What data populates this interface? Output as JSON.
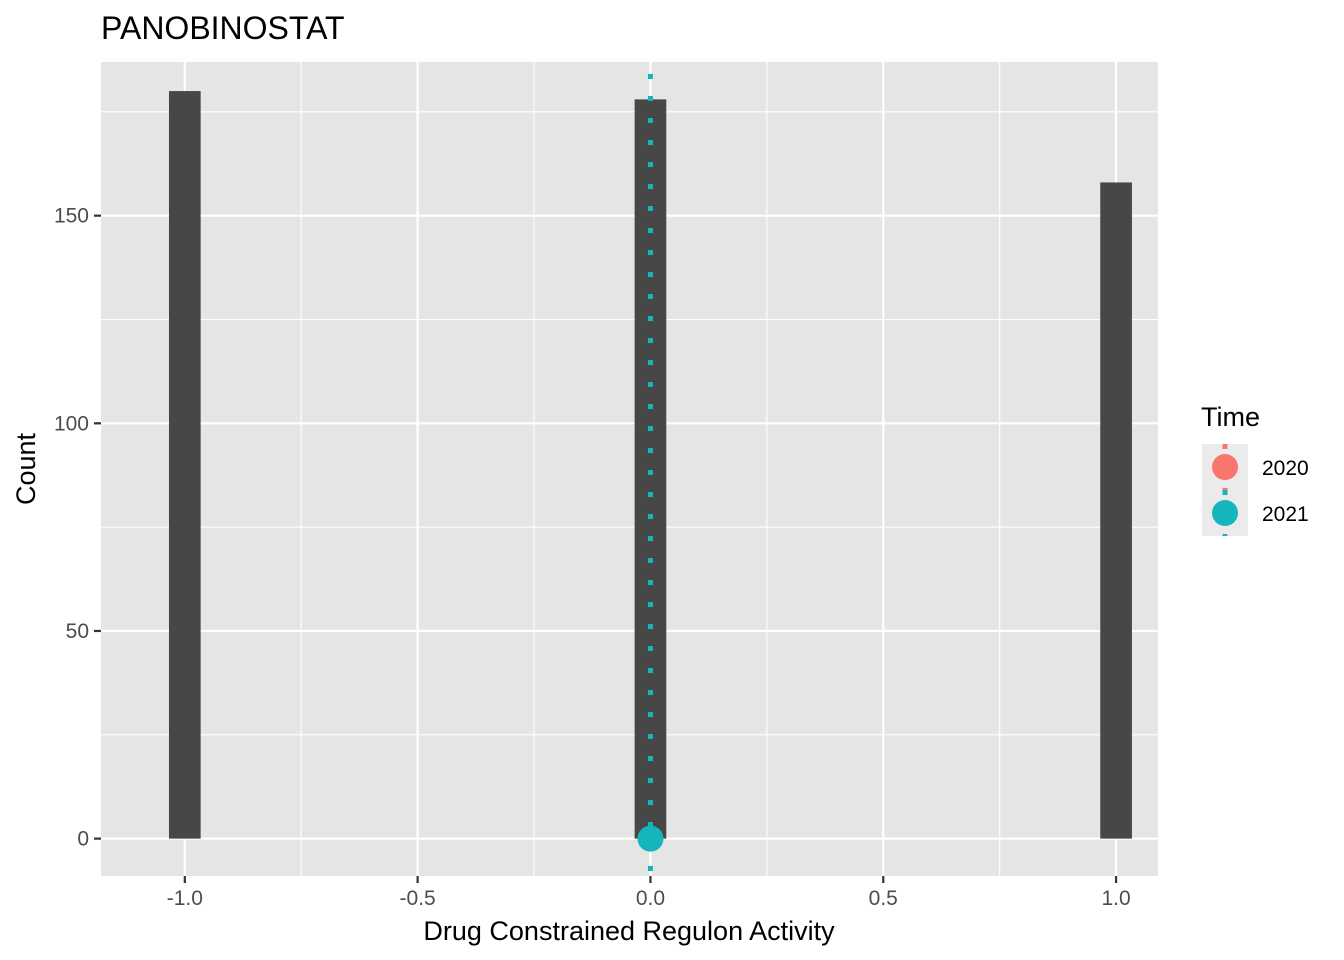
{
  "chart_data": {
    "type": "bar",
    "title": "PANOBINOSTAT",
    "xlabel": "Drug Constrained Regulon Activity",
    "ylabel": "Count",
    "x_ticks": [
      -1.0,
      -0.5,
      0.0,
      0.5,
      1.0
    ],
    "x_tick_labels": [
      "-1.0",
      "-0.5",
      "0.0",
      "0.5",
      "1.0"
    ],
    "y_ticks": [
      0,
      50,
      100,
      150
    ],
    "y_tick_labels": [
      "0",
      "50",
      "100",
      "150"
    ],
    "xlim": [
      -1.18,
      1.09
    ],
    "ylim": [
      -9,
      187
    ],
    "bin_width": 0.068,
    "bars": [
      {
        "x": -1.0,
        "count": 180
      },
      {
        "x": 0.0,
        "count": 178
      },
      {
        "x": 1.0,
        "count": 158
      }
    ],
    "bar_color": "#474747",
    "panel_background": "#e5e5e5",
    "grid": true,
    "vlines": [
      {
        "x": 0.0,
        "linetype": "dotted",
        "color": "#14b6bc",
        "group": "2021"
      }
    ],
    "points": [
      {
        "x": 0.0,
        "y": 0,
        "color": "#14b6bc",
        "group": "2021"
      }
    ],
    "legend": {
      "title": "Time",
      "position": "right",
      "entries": [
        {
          "label": "2020",
          "color": "#f8766d"
        },
        {
          "label": "2021",
          "color": "#14b6bc"
        }
      ]
    }
  }
}
